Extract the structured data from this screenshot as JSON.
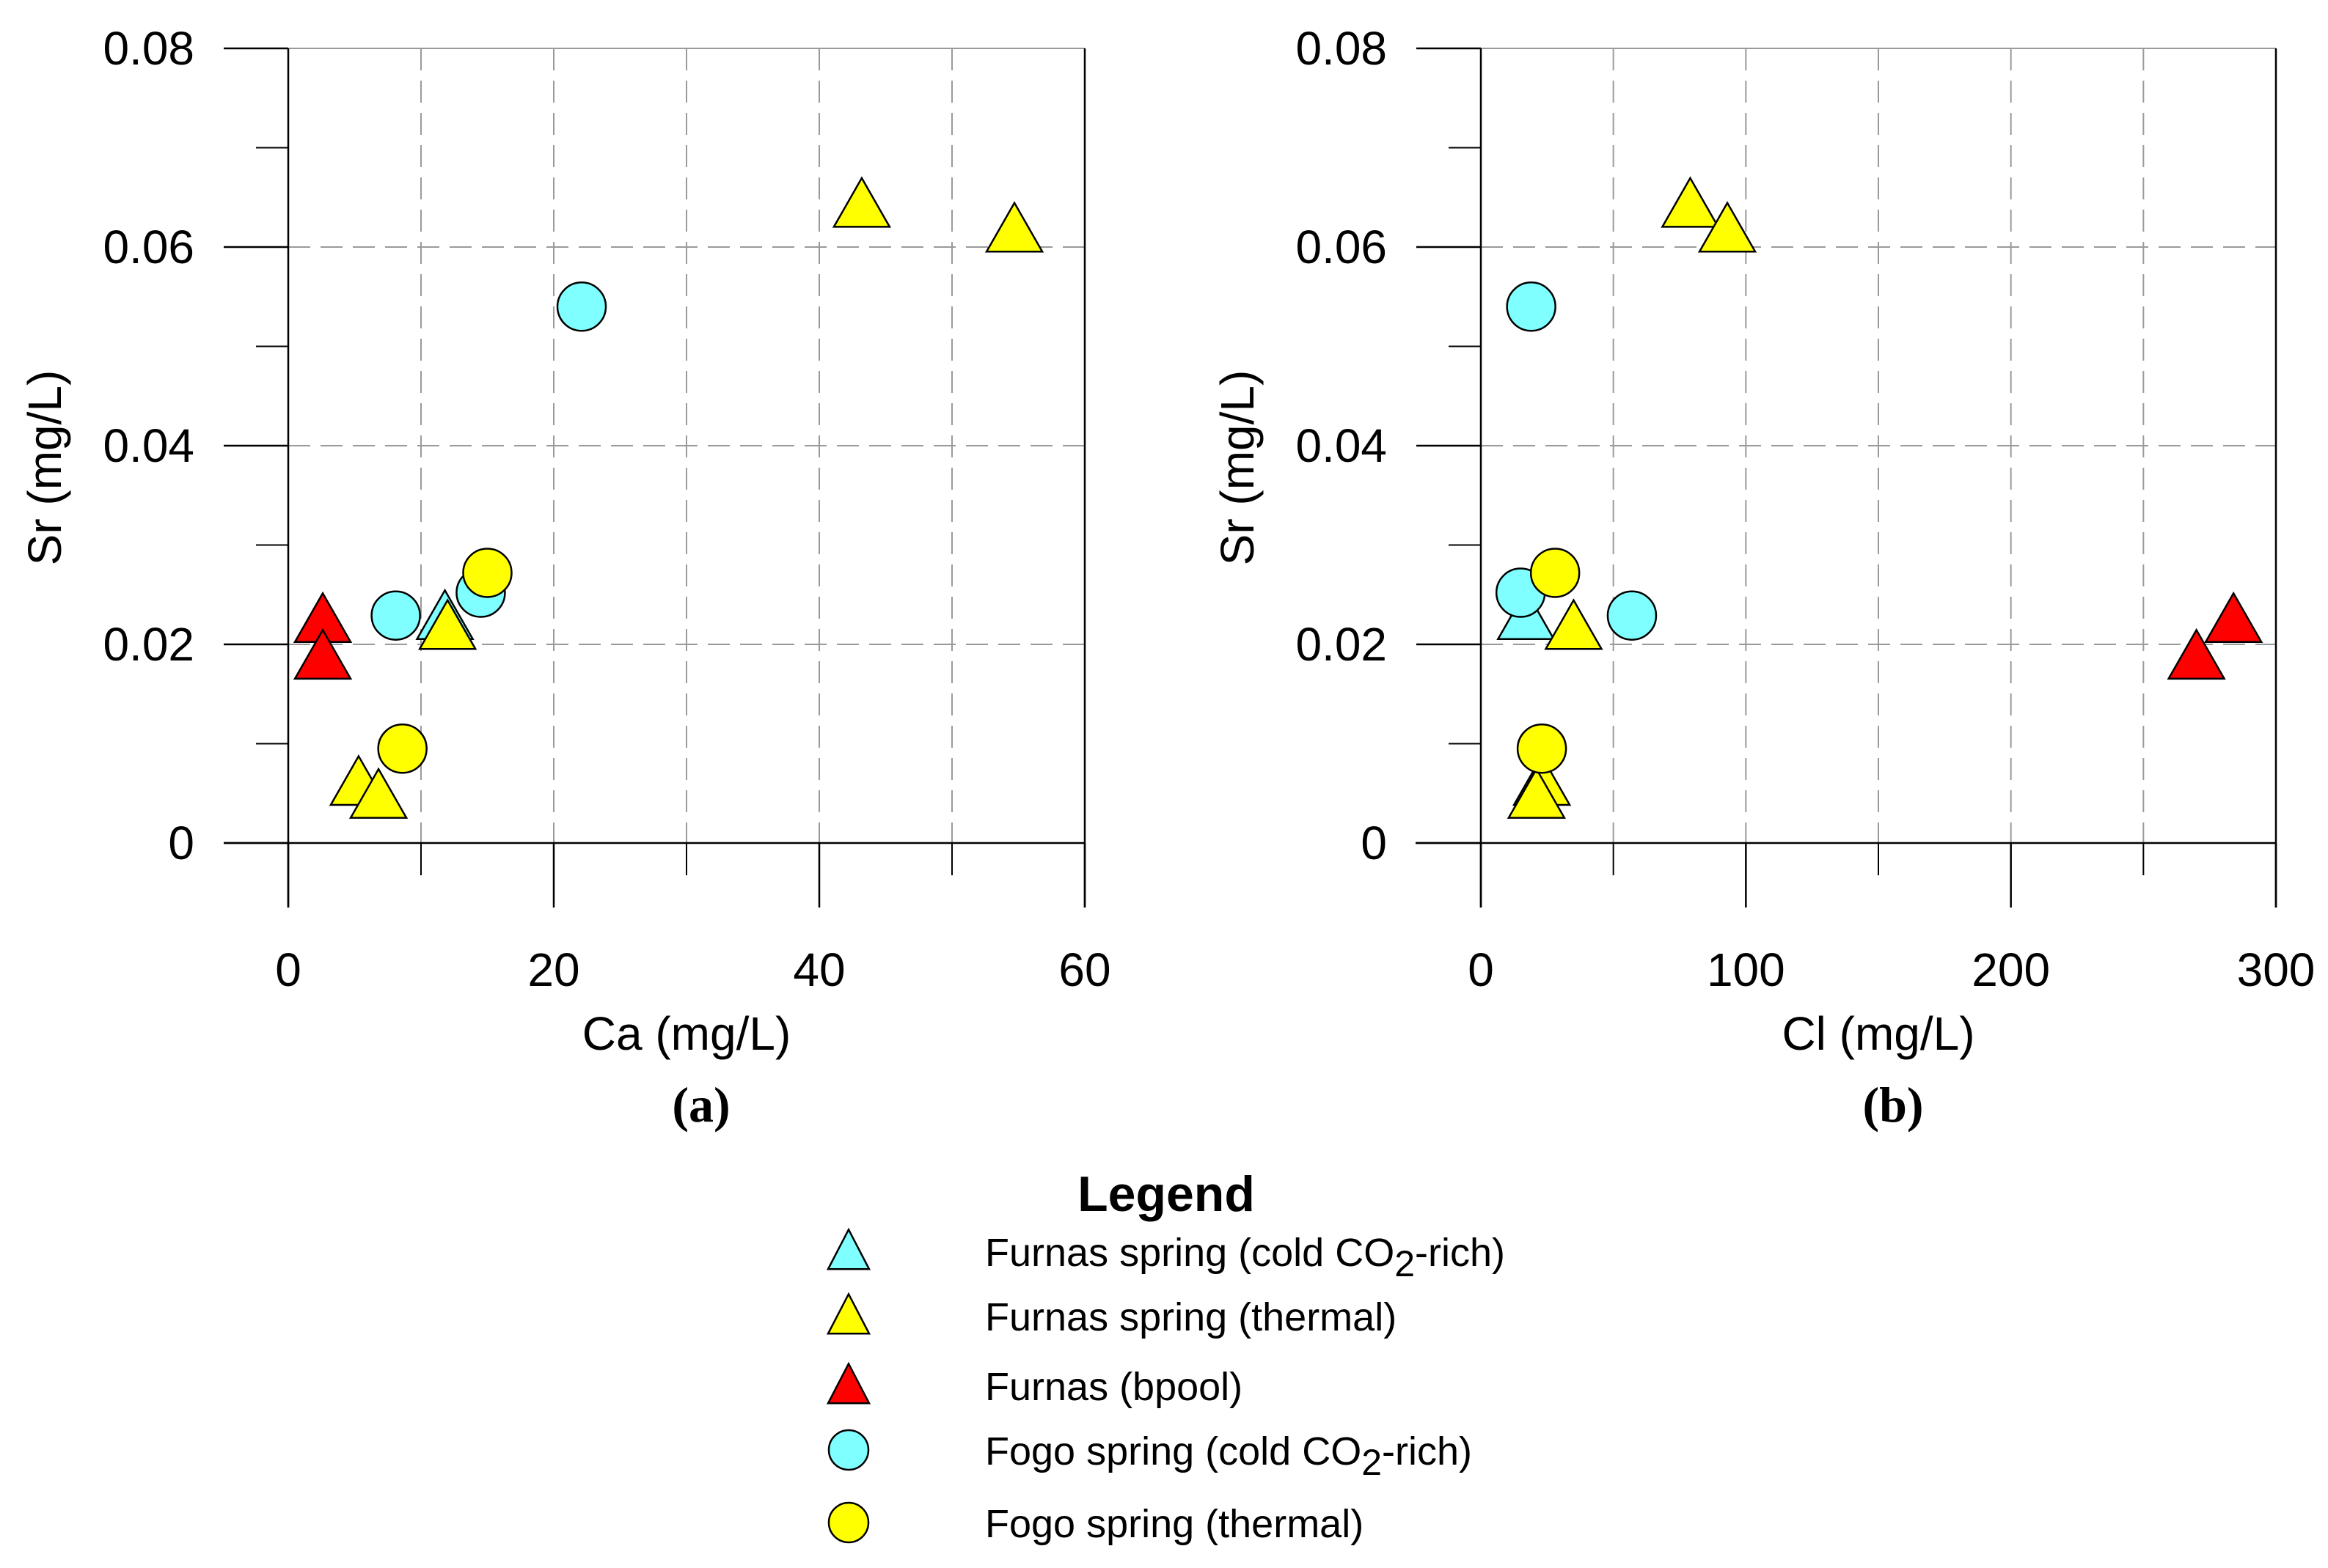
{
  "chart_data": [
    {
      "type": "scatter",
      "panel_label": "(a)",
      "xlabel": "Ca (mg/L)",
      "ylabel": "Sr (mg/L)",
      "xlim": [
        0,
        60
      ],
      "ylim": [
        0,
        0.08
      ],
      "xticks": [
        "0",
        "20",
        "40",
        "60"
      ],
      "yticks": [
        "0",
        "0.02",
        "0.04",
        "0.06",
        "0.08"
      ],
      "grid": true,
      "series": [
        {
          "name": "Furnas spring (cold CO2-rich)",
          "marker": "triangle",
          "color": "#7fffff",
          "points": [
            [
              11.8,
              0.0225
            ]
          ]
        },
        {
          "name": "Furnas spring (thermal)",
          "marker": "triangle",
          "color": "#ffff00",
          "points": [
            [
              43.2,
              0.064
            ],
            [
              54.7,
              0.0615
            ],
            [
              12.0,
              0.0215
            ],
            [
              5.3,
              0.0058
            ],
            [
              6.8,
              0.0045
            ]
          ]
        },
        {
          "name": "Furnas (bpool)",
          "marker": "triangle",
          "color": "#ff0000",
          "points": [
            [
              2.6,
              0.0222
            ],
            [
              2.6,
              0.0185
            ]
          ]
        },
        {
          "name": "Fogo spring (cold CO2-rich)",
          "marker": "circle",
          "color": "#7fffff",
          "points": [
            [
              22.1,
              0.054
            ],
            [
              8.1,
              0.0229
            ],
            [
              14.5,
              0.0252
            ]
          ]
        },
        {
          "name": "Fogo spring (thermal)",
          "marker": "circle",
          "color": "#ffff00",
          "points": [
            [
              15.0,
              0.0272
            ],
            [
              8.6,
              0.0095
            ]
          ]
        }
      ]
    },
    {
      "type": "scatter",
      "panel_label": "(b)",
      "xlabel": "Cl (mg/L)",
      "ylabel": "Sr (mg/L)",
      "xlim": [
        0,
        300
      ],
      "ylim": [
        0,
        0.08
      ],
      "xticks": [
        "0",
        "100",
        "200",
        "300"
      ],
      "yticks": [
        "0",
        "0.02",
        "0.04",
        "0.06",
        "0.08"
      ],
      "grid": true,
      "series": [
        {
          "name": "Furnas spring (cold CO2-rich)",
          "marker": "triangle",
          "color": "#7fffff",
          "points": [
            [
              17,
              0.0225
            ]
          ]
        },
        {
          "name": "Furnas spring (thermal)",
          "marker": "triangle",
          "color": "#ffff00",
          "points": [
            [
              79,
              0.064
            ],
            [
              93,
              0.0615
            ],
            [
              35,
              0.0215
            ],
            [
              23,
              0.0058
            ],
            [
              21,
              0.0045
            ]
          ]
        },
        {
          "name": "Furnas (bpool)",
          "marker": "triangle",
          "color": "#ff0000",
          "points": [
            [
              284,
              0.0222
            ],
            [
              270,
              0.0185
            ]
          ]
        },
        {
          "name": "Fogo spring (cold CO2-rich)",
          "marker": "circle",
          "color": "#7fffff",
          "points": [
            [
              19,
              0.054
            ],
            [
              57,
              0.0229
            ],
            [
              15,
              0.0252
            ]
          ]
        },
        {
          "name": "Fogo spring (thermal)",
          "marker": "circle",
          "color": "#ffff00",
          "points": [
            [
              28,
              0.0272
            ],
            [
              23,
              0.0095
            ]
          ]
        }
      ]
    }
  ],
  "legend": {
    "title": "Legend",
    "placement": "bottom-center",
    "items": [
      {
        "marker": "triangle",
        "color": "#7fffff",
        "label_pre": "Furnas spring (cold CO",
        "label_sub": "2",
        "label_post": "-rich)"
      },
      {
        "marker": "triangle",
        "color": "#ffff00",
        "label_pre": "Furnas spring (thermal)",
        "label_sub": "",
        "label_post": ""
      },
      {
        "marker": "triangle",
        "color": "#ff0000",
        "label_pre": "Furnas (bpool)",
        "label_sub": "",
        "label_post": ""
      },
      {
        "marker": "circle",
        "color": "#7fffff",
        "label_pre": "Fogo spring (cold CO",
        "label_sub": "2",
        "label_post": "-rich)"
      },
      {
        "marker": "circle",
        "color": "#ffff00",
        "label_pre": "Fogo spring (thermal)",
        "label_sub": "",
        "label_post": ""
      }
    ]
  }
}
